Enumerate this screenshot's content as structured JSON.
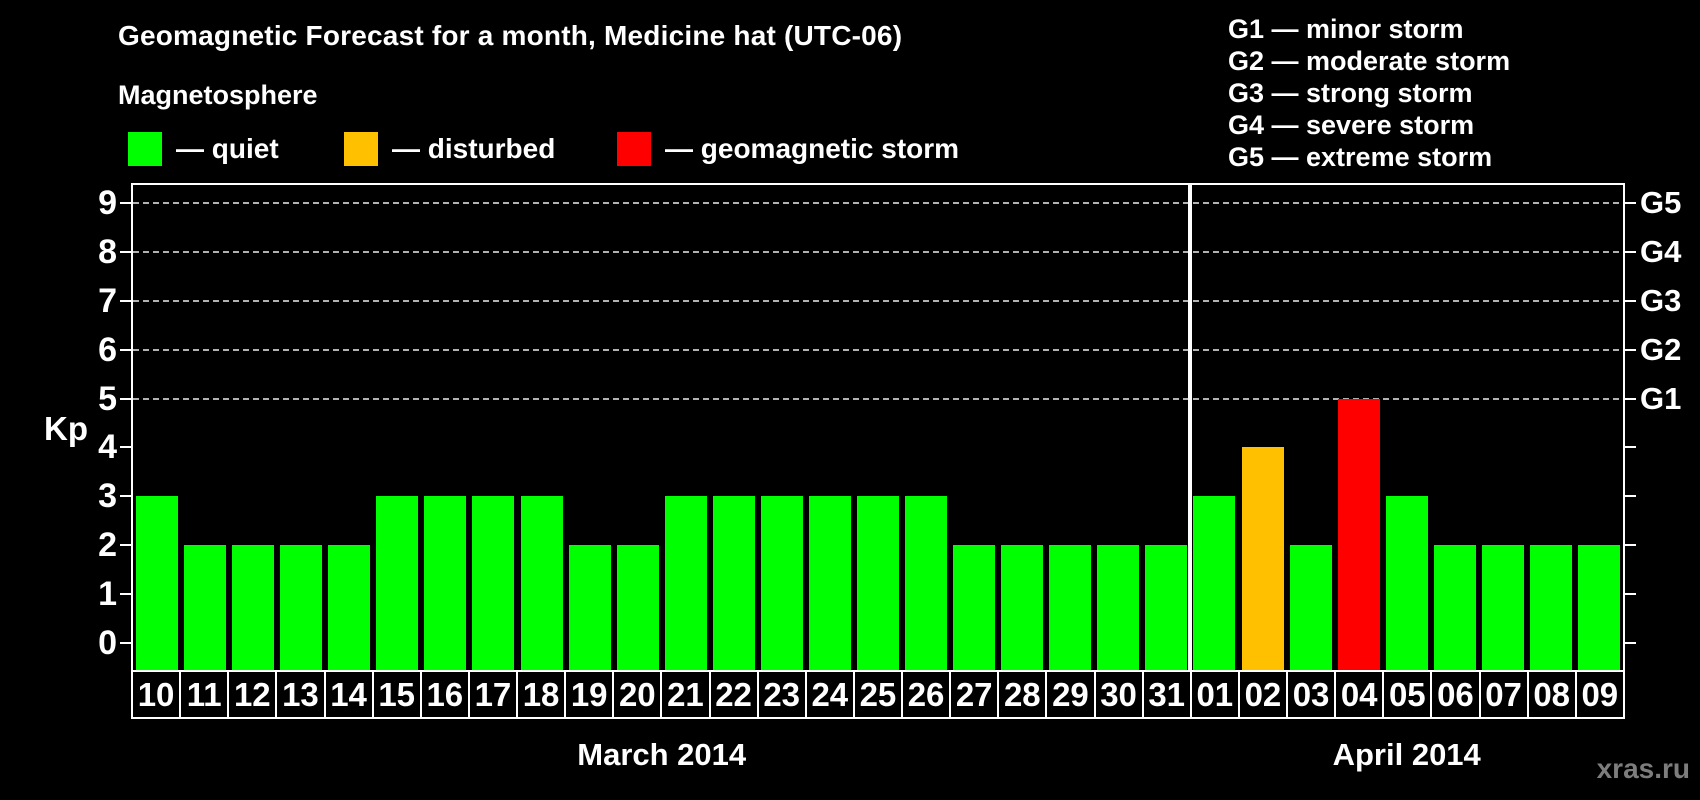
{
  "header": {
    "title": "Geomagnetic Forecast for a month, Medicine hat (UTC-06)",
    "subtitle": "Magnetosphere",
    "legend": [
      {
        "name": "quiet",
        "label": "— quiet",
        "color": "#00ff00"
      },
      {
        "name": "disturbed",
        "label": "— disturbed",
        "color": "#ffc000"
      },
      {
        "name": "storm",
        "label": "— geomagnetic storm",
        "color": "#ff0000"
      }
    ],
    "storm_scale": [
      "G1 — minor storm",
      "G2 — moderate storm",
      "G3 — strong storm",
      "G4 — severe storm",
      "G5 — extreme storm"
    ]
  },
  "chart_data": {
    "type": "bar",
    "title": "Geomagnetic Forecast for a month, Medicine hat (UTC-06)",
    "ylabel": "Kp",
    "ylim": [
      0,
      9
    ],
    "yticks": [
      0,
      1,
      2,
      3,
      4,
      5,
      6,
      7,
      8,
      9
    ],
    "gridlines_at_kp": [
      5,
      6,
      7,
      8,
      9
    ],
    "grid": "dashed horizontal at G-storm levels",
    "legend_position": "top-left",
    "right_axis": [
      {
        "kp": 5,
        "label": "G1"
      },
      {
        "kp": 6,
        "label": "G2"
      },
      {
        "kp": 7,
        "label": "G3"
      },
      {
        "kp": 8,
        "label": "G4"
      },
      {
        "kp": 9,
        "label": "G5"
      }
    ],
    "status_colors": {
      "quiet": "#00ff00",
      "disturbed": "#ffc000",
      "storm": "#ff0000"
    },
    "months": [
      {
        "label": "March 2014",
        "days": [
          {
            "day": "10",
            "kp": 3,
            "status": "quiet"
          },
          {
            "day": "11",
            "kp": 2,
            "status": "quiet"
          },
          {
            "day": "12",
            "kp": 2,
            "status": "quiet"
          },
          {
            "day": "13",
            "kp": 2,
            "status": "quiet"
          },
          {
            "day": "14",
            "kp": 2,
            "status": "quiet"
          },
          {
            "day": "15",
            "kp": 3,
            "status": "quiet"
          },
          {
            "day": "16",
            "kp": 3,
            "status": "quiet"
          },
          {
            "day": "17",
            "kp": 3,
            "status": "quiet"
          },
          {
            "day": "18",
            "kp": 3,
            "status": "quiet"
          },
          {
            "day": "19",
            "kp": 2,
            "status": "quiet"
          },
          {
            "day": "20",
            "kp": 2,
            "status": "quiet"
          },
          {
            "day": "21",
            "kp": 3,
            "status": "quiet"
          },
          {
            "day": "22",
            "kp": 3,
            "status": "quiet"
          },
          {
            "day": "23",
            "kp": 3,
            "status": "quiet"
          },
          {
            "day": "24",
            "kp": 3,
            "status": "quiet"
          },
          {
            "day": "25",
            "kp": 3,
            "status": "quiet"
          },
          {
            "day": "26",
            "kp": 3,
            "status": "quiet"
          },
          {
            "day": "27",
            "kp": 2,
            "status": "quiet"
          },
          {
            "day": "28",
            "kp": 2,
            "status": "quiet"
          },
          {
            "day": "29",
            "kp": 2,
            "status": "quiet"
          },
          {
            "day": "30",
            "kp": 2,
            "status": "quiet"
          },
          {
            "day": "31",
            "kp": 2,
            "status": "quiet"
          }
        ]
      },
      {
        "label": "April 2014",
        "days": [
          {
            "day": "01",
            "kp": 3,
            "status": "quiet"
          },
          {
            "day": "02",
            "kp": 4,
            "status": "disturbed"
          },
          {
            "day": "03",
            "kp": 2,
            "status": "quiet"
          },
          {
            "day": "04",
            "kp": 5,
            "status": "storm"
          },
          {
            "day": "05",
            "kp": 3,
            "status": "quiet"
          },
          {
            "day": "06",
            "kp": 2,
            "status": "quiet"
          },
          {
            "day": "07",
            "kp": 2,
            "status": "quiet"
          },
          {
            "day": "08",
            "kp": 2,
            "status": "quiet"
          },
          {
            "day": "09",
            "kp": 2,
            "status": "quiet"
          }
        ]
      }
    ]
  },
  "watermark": "xras.ru"
}
